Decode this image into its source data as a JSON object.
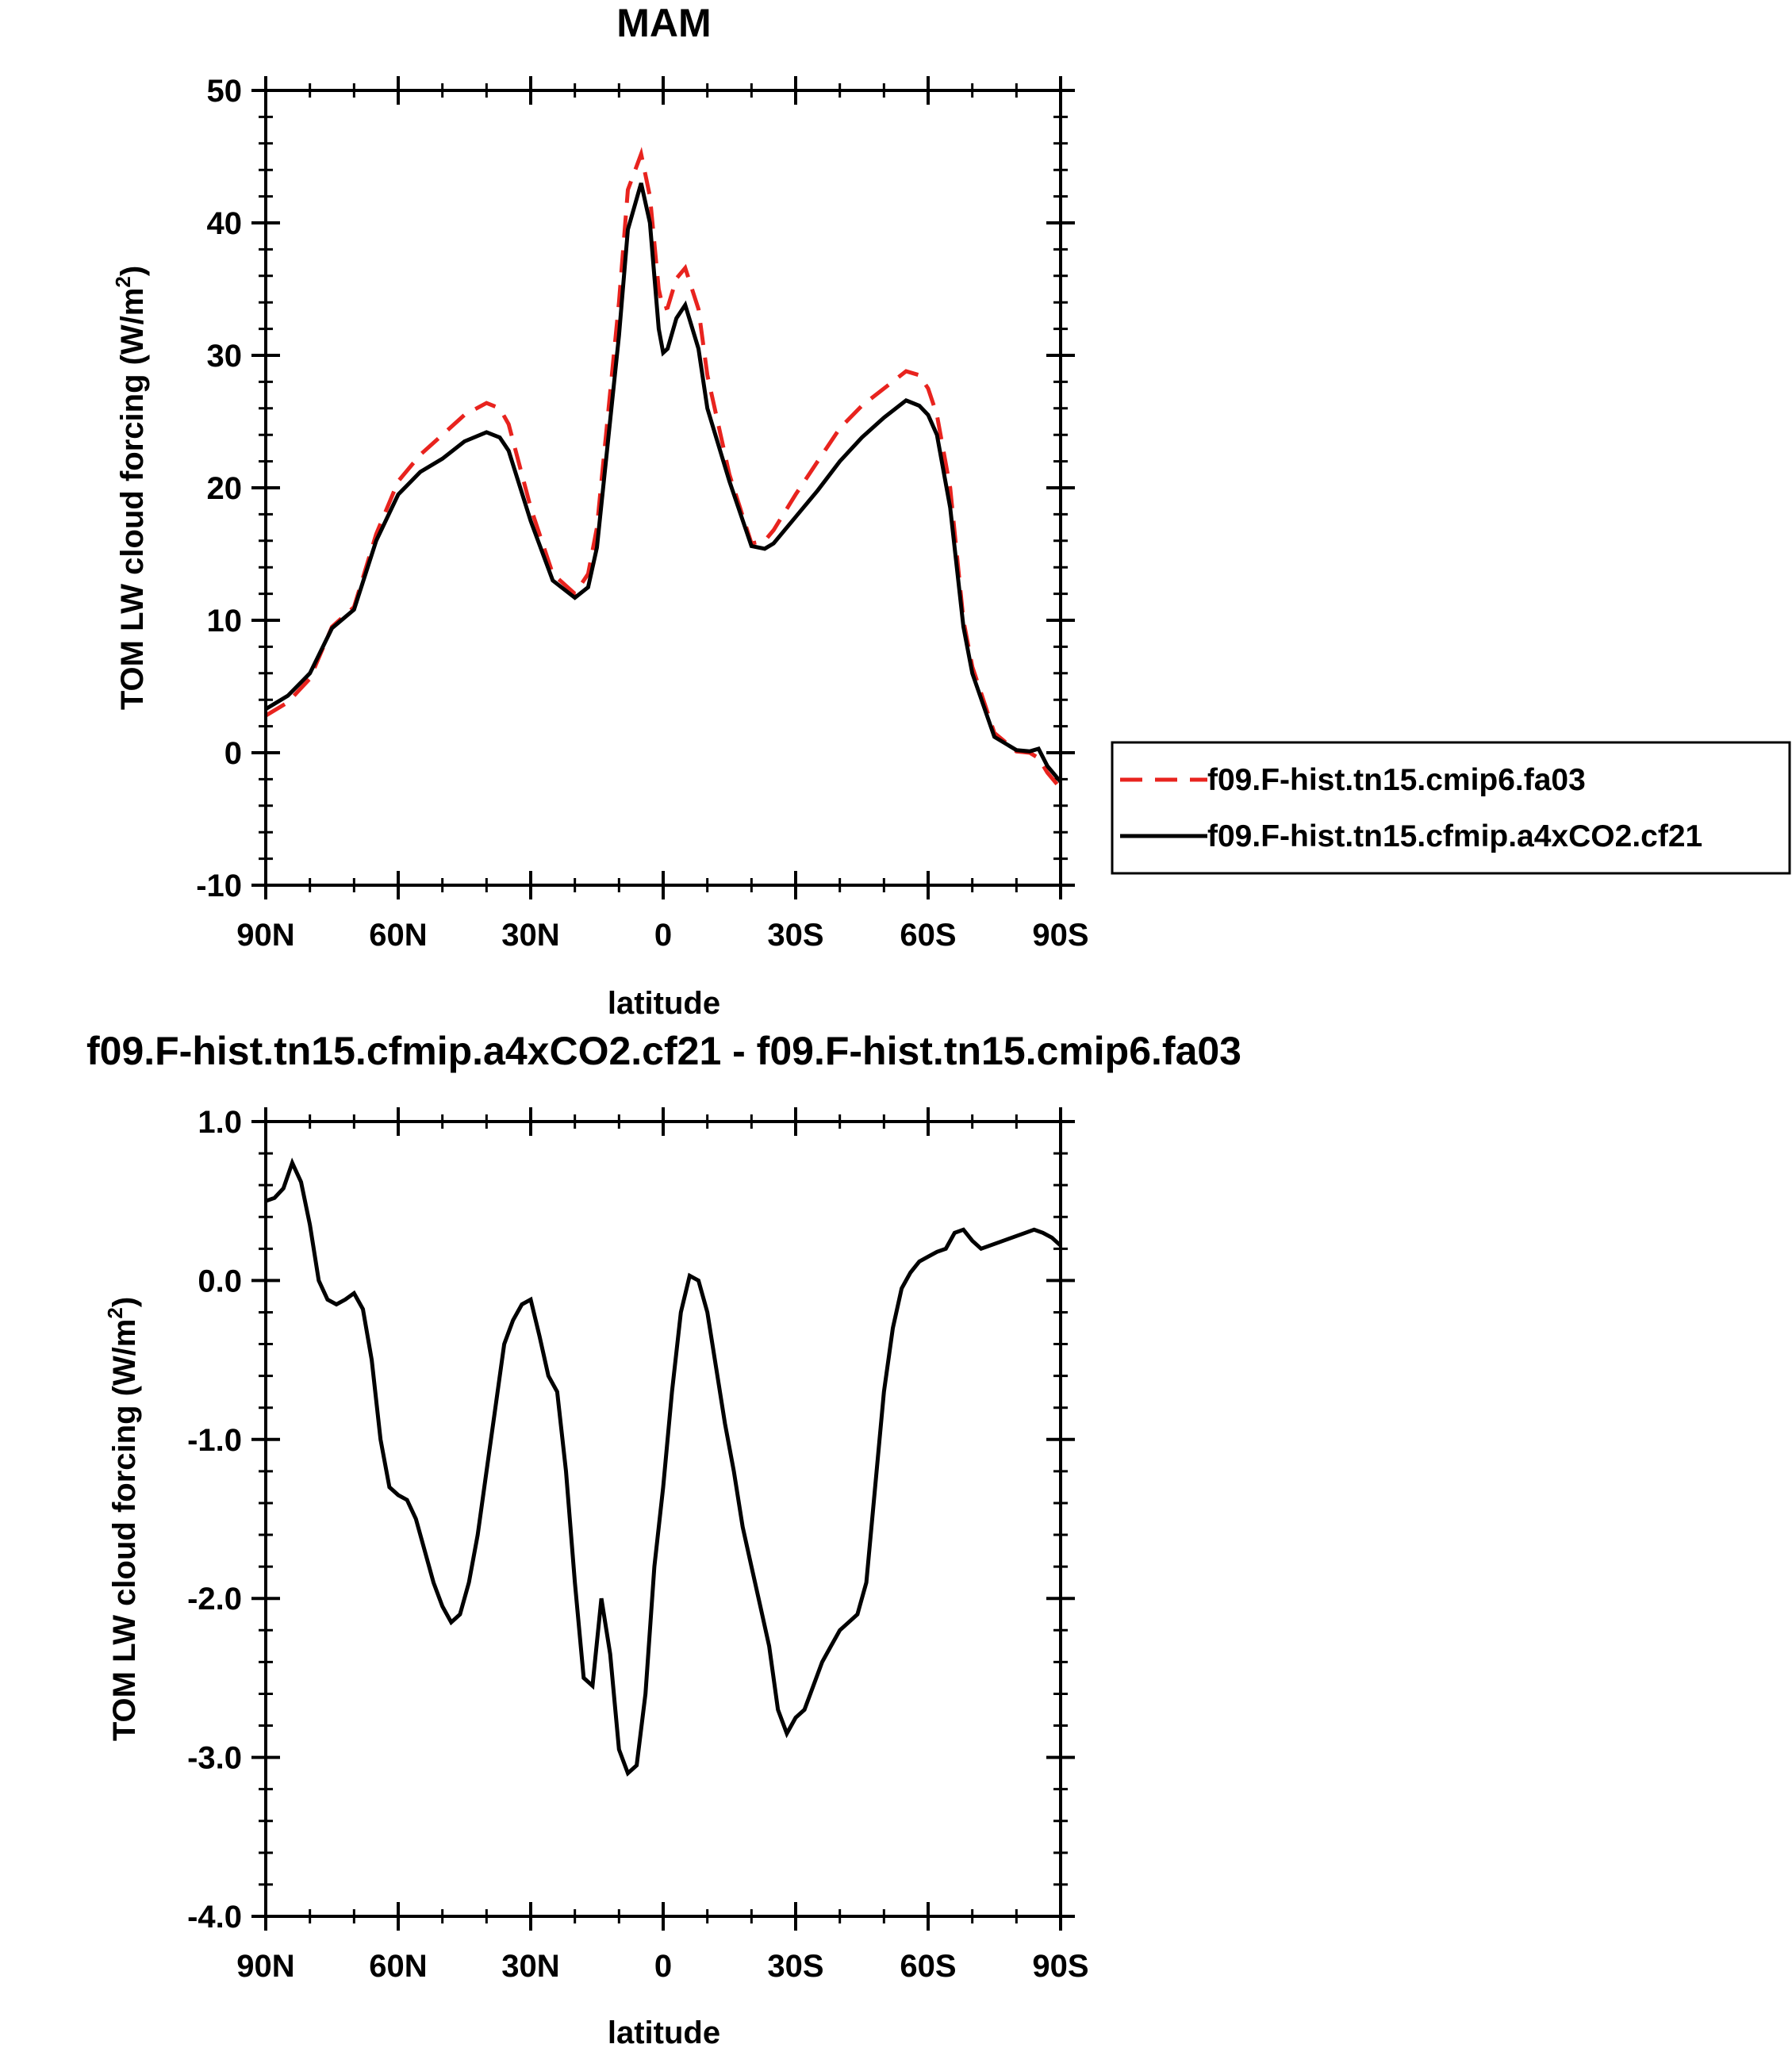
{
  "chart_data": [
    {
      "type": "line",
      "title": "MAM",
      "xlabel": "latitude",
      "ylabel": "TOM LW cloud forcing (W/m",
      "ylabel_sup": "2",
      "ylabel_close": ")",
      "x_label_note": "x values are latitude in degrees: positive = N, negative = S",
      "xlim": [
        90,
        -90
      ],
      "ylim": [
        -10,
        50
      ],
      "xticks": [
        {
          "value": 90,
          "label": "90N"
        },
        {
          "value": 60,
          "label": "60N"
        },
        {
          "value": 30,
          "label": "30N"
        },
        {
          "value": 0,
          "label": "0"
        },
        {
          "value": -30,
          "label": "30S"
        },
        {
          "value": -60,
          "label": "60S"
        },
        {
          "value": -90,
          "label": "90S"
        }
      ],
      "yticks": [
        {
          "value": 50,
          "label": "50"
        },
        {
          "value": 40,
          "label": "40"
        },
        {
          "value": 30,
          "label": "30"
        },
        {
          "value": 20,
          "label": "20"
        },
        {
          "value": 10,
          "label": "10"
        },
        {
          "value": 0,
          "label": "0"
        },
        {
          "value": -10,
          "label": "-10"
        }
      ],
      "x": [
        90,
        85,
        80,
        75,
        70,
        65,
        60,
        55,
        50,
        45,
        40,
        37,
        35,
        30,
        25,
        20,
        17,
        15,
        10,
        8,
        5,
        3,
        1,
        0,
        -1,
        -3,
        -5,
        -8,
        -10,
        -15,
        -20,
        -23,
        -25,
        -30,
        -35,
        -40,
        -45,
        -50,
        -55,
        -58,
        -60,
        -62,
        -65,
        -68,
        -70,
        -75,
        -80,
        -83,
        -85,
        -87,
        -90
      ],
      "series": [
        {
          "name": "f09.F-hist.tn15.cmip6.fa03",
          "color": "#e8231e",
          "dash": true,
          "values": [
            2.8,
            3.8,
            5.6,
            9.5,
            11.0,
            16.5,
            20.5,
            22.5,
            24.0,
            25.5,
            26.4,
            26.0,
            24.8,
            18.5,
            13.5,
            12.0,
            13.5,
            17.0,
            34.0,
            42.5,
            45.2,
            42.0,
            35.0,
            33.5,
            33.6,
            35.8,
            36.6,
            33.5,
            28.5,
            21.0,
            15.8,
            16.0,
            16.8,
            19.5,
            22.0,
            24.5,
            26.2,
            27.5,
            28.8,
            28.5,
            27.5,
            25.5,
            20.0,
            10.0,
            6.5,
            1.5,
            0.1,
            0.0,
            -0.4,
            -1.5,
            -2.7
          ]
        },
        {
          "name": "f09.F-hist.tn15.cfmip.a4xCO2.cf21",
          "color": "#000000",
          "dash": false,
          "values": [
            3.3,
            4.3,
            6.0,
            9.4,
            10.8,
            16.0,
            19.5,
            21.2,
            22.2,
            23.5,
            24.2,
            23.8,
            22.8,
            17.5,
            13.0,
            11.7,
            12.5,
            15.5,
            31.5,
            39.5,
            43.0,
            40.0,
            32.0,
            30.2,
            30.5,
            32.8,
            33.8,
            30.5,
            26.0,
            20.5,
            15.6,
            15.4,
            15.8,
            17.8,
            19.8,
            22.0,
            23.8,
            25.3,
            26.6,
            26.2,
            25.5,
            24.0,
            18.5,
            9.5,
            6.0,
            1.2,
            0.2,
            0.1,
            0.3,
            -1.0,
            -2.2
          ]
        }
      ],
      "legend": "right, outside plot",
      "grid": false
    },
    {
      "type": "line",
      "title": "f09.F-hist.tn15.cfmip.a4xCO2.cf21 - f09.F-hist.tn15.cmip6.fa03",
      "xlabel": "latitude",
      "ylabel": "TOM LW cloud forcing (W/m",
      "ylabel_sup": "2",
      "ylabel_close": ")",
      "xlim": [
        90,
        -90
      ],
      "ylim": [
        -4.0,
        1.0
      ],
      "xticks": [
        {
          "value": 90,
          "label": "90N"
        },
        {
          "value": 60,
          "label": "60N"
        },
        {
          "value": 30,
          "label": "30N"
        },
        {
          "value": 0,
          "label": "0"
        },
        {
          "value": -30,
          "label": "30S"
        },
        {
          "value": -60,
          "label": "60S"
        },
        {
          "value": -90,
          "label": "90S"
        }
      ],
      "yticks": [
        {
          "value": 1.0,
          "label": "1.0"
        },
        {
          "value": 0.0,
          "label": "0.0"
        },
        {
          "value": -1.0,
          "label": "-1.0"
        },
        {
          "value": -2.0,
          "label": "-2.0"
        },
        {
          "value": -3.0,
          "label": "-3.0"
        },
        {
          "value": -4.0,
          "label": "-4.0"
        }
      ],
      "x": [
        90,
        88,
        86,
        84,
        82,
        80,
        78,
        76,
        74,
        72,
        70,
        68,
        66,
        64,
        62,
        60,
        58,
        56,
        54,
        52,
        50,
        48,
        46,
        44,
        42,
        40,
        38,
        36,
        34,
        32,
        30,
        28,
        26,
        24,
        22,
        20,
        18,
        16,
        14,
        12,
        10,
        8,
        6,
        4,
        2,
        0,
        -2,
        -4,
        -6,
        -8,
        -10,
        -12,
        -14,
        -16,
        -18,
        -20,
        -22,
        -24,
        -26,
        -28,
        -30,
        -32,
        -34,
        -36,
        -38,
        -40,
        -42,
        -44,
        -46,
        -48,
        -50,
        -52,
        -54,
        -56,
        -58,
        -60,
        -62,
        -64,
        -66,
        -68,
        -70,
        -72,
        -74,
        -76,
        -78,
        -80,
        -82,
        -84,
        -86,
        -88,
        -90
      ],
      "series": [
        {
          "name": "f09.F-hist.tn15.cfmip.a4xCO2.cf21 - f09.F-hist.tn15.cmip6.fa03",
          "color": "#000000",
          "dash": false,
          "values": [
            0.5,
            0.52,
            0.58,
            0.74,
            0.62,
            0.35,
            0.0,
            -0.12,
            -0.15,
            -0.12,
            -0.08,
            -0.18,
            -0.5,
            -1.0,
            -1.3,
            -1.35,
            -1.38,
            -1.5,
            -1.7,
            -1.9,
            -2.05,
            -2.15,
            -2.1,
            -1.9,
            -1.6,
            -1.2,
            -0.8,
            -0.4,
            -0.25,
            -0.15,
            -0.12,
            -0.35,
            -0.6,
            -0.7,
            -1.2,
            -1.9,
            -2.5,
            -2.55,
            -2.0,
            -2.35,
            -2.95,
            -3.1,
            -3.05,
            -2.6,
            -1.8,
            -1.3,
            -0.7,
            -0.2,
            0.03,
            0.0,
            -0.2,
            -0.55,
            -0.9,
            -1.2,
            -1.55,
            -1.8,
            -2.05,
            -2.3,
            -2.7,
            -2.85,
            -2.75,
            -2.7,
            -2.55,
            -2.4,
            -2.3,
            -2.2,
            -2.15,
            -2.1,
            -1.9,
            -1.3,
            -0.7,
            -0.3,
            -0.05,
            0.05,
            0.12,
            0.15,
            0.18,
            0.2,
            0.3,
            0.32,
            0.25,
            0.2,
            0.22,
            0.24,
            0.26,
            0.28,
            0.3,
            0.32,
            0.3,
            0.27,
            0.22
          ]
        }
      ],
      "grid": false
    }
  ]
}
